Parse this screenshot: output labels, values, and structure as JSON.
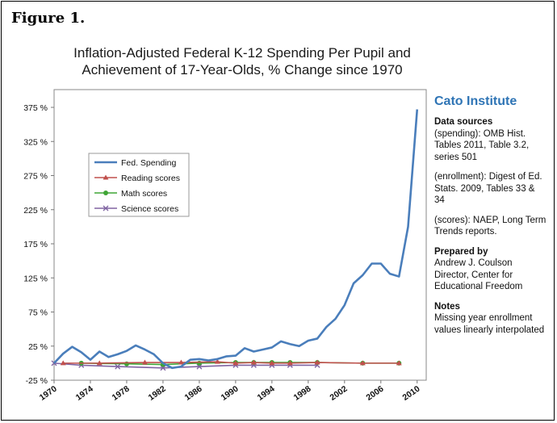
{
  "figure_label": "Figure 1.",
  "chart_data": {
    "type": "line",
    "title_lines": [
      "Inflation-Adjusted Federal K-12 Spending Per Pupil and",
      "Achievement of 17-Year-Olds, % Change since 1970"
    ],
    "ylim": [
      -25,
      375
    ],
    "ytick_values": [
      -25,
      25,
      75,
      125,
      175,
      225,
      275,
      325,
      375
    ],
    "ytick_labels": [
      "-25 %",
      "25 %",
      "75 %",
      "125 %",
      "175 %",
      "225 %",
      "275 %",
      "325 %",
      "375 %"
    ],
    "xlim": [
      1970,
      2011
    ],
    "xtick_values": [
      1970,
      1974,
      1978,
      1982,
      1986,
      1990,
      1994,
      1998,
      2002,
      2006,
      2010
    ],
    "xtick_labels": [
      "1970",
      "1974",
      "1978",
      "1982",
      "1986",
      "1990",
      "1994",
      "1998",
      "2002",
      "2006",
      "2010"
    ],
    "grid": false,
    "legend_position": "upper-left",
    "series": [
      {
        "name": "Fed. Spending",
        "color": "#4a7ebb",
        "marker": "none",
        "x": [
          1970,
          1971,
          1972,
          1973,
          1974,
          1975,
          1976,
          1977,
          1978,
          1979,
          1980,
          1981,
          1982,
          1983,
          1984,
          1985,
          1986,
          1987,
          1988,
          1989,
          1990,
          1991,
          1992,
          1993,
          1994,
          1995,
          1996,
          1997,
          1998,
          1999,
          2000,
          2001,
          2002,
          2003,
          2004,
          2005,
          2006,
          2007,
          2008,
          2009,
          2010
        ],
        "y": [
          0,
          14,
          24,
          16,
          5,
          17,
          9,
          13,
          18,
          26,
          20,
          13,
          0,
          -7,
          -5,
          5,
          6,
          4,
          6,
          10,
          11,
          22,
          17,
          20,
          23,
          32,
          28,
          25,
          33,
          36,
          53,
          65,
          85,
          117,
          129,
          146,
          146,
          131,
          127,
          200,
          372
        ]
      },
      {
        "name": "Reading scores",
        "color": "#c0504d",
        "marker": "triangle",
        "x": [
          1971,
          1975,
          1980,
          1984,
          1988,
          1990,
          1992,
          1994,
          1996,
          1999,
          2004,
          2008
        ],
        "y": [
          0,
          0,
          1,
          1,
          2,
          0,
          1,
          0,
          0,
          1,
          0,
          0
        ]
      },
      {
        "name": "Math scores",
        "color": "#3fa535",
        "marker": "circle",
        "x": [
          1973,
          1978,
          1982,
          1986,
          1990,
          1992,
          1994,
          1996,
          1999,
          2004,
          2008
        ],
        "y": [
          0,
          -1,
          -2,
          0,
          1,
          1,
          1,
          1,
          1,
          0,
          0
        ]
      },
      {
        "name": "Science scores",
        "color": "#8064a2",
        "marker": "x",
        "x": [
          1970,
          1973,
          1977,
          1982,
          1986,
          1990,
          1992,
          1994,
          1996,
          1999
        ],
        "y": [
          0,
          -3,
          -5,
          -7,
          -5,
          -3,
          -3,
          -3,
          -3,
          -3
        ]
      }
    ]
  },
  "sidebar": {
    "org": "Cato Institute",
    "data_sources_heading": "Data sources",
    "spending_source": "(spending): OMB Hist. Tables 2011, Table 3.2, series 501",
    "enrollment_source": "(enrollment): Digest of Ed. Stats. 2009, Tables 33 & 34",
    "scores_source": "(scores): NAEP, Long Term Trends reports.",
    "prepared_heading": "Prepared by",
    "prepared_by": "Andrew J. Coulson",
    "prepared_title": "Director, Center for Educational Freedom",
    "notes_heading": "Notes",
    "notes_text": "Missing year enrollment values linearly interpolated"
  }
}
